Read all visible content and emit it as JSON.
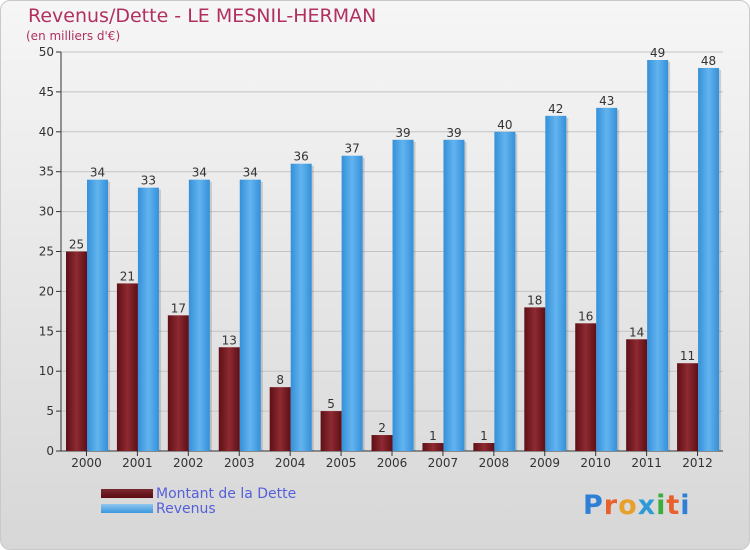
{
  "title": "Revenus/Dette - LE MESNIL-HERMAN",
  "subtitle": "(en milliers d'€)",
  "legend": {
    "dette_label": "Montant de la Dette",
    "revenus_label": "Revenus"
  },
  "brand": {
    "name": "Proxiti",
    "letter_colors": [
      "#2f7fd6",
      "#e8612c",
      "#e8a02c",
      "#2f9bd6",
      "#3cae3c",
      "#e8612c",
      "#2f7fd6"
    ]
  },
  "colors": {
    "title": "#b03060",
    "dette": "#7b1f26",
    "revenus": "#4aa3e6",
    "legend_text": "#5560d8"
  },
  "chart_data": {
    "type": "bar",
    "title": "Revenus/Dette - LE MESNIL-HERMAN",
    "subtitle": "(en milliers d'€)",
    "categories": [
      "2000",
      "2001",
      "2002",
      "2003",
      "2004",
      "2005",
      "2006",
      "2007",
      "2008",
      "2009",
      "2010",
      "2011",
      "2012"
    ],
    "series": [
      {
        "name": "Montant de la Dette",
        "values": [
          25,
          21,
          17,
          13,
          8,
          5,
          2,
          1,
          1,
          18,
          16,
          14,
          11
        ]
      },
      {
        "name": "Revenus",
        "values": [
          34,
          33,
          34,
          34,
          36,
          37,
          39,
          39,
          40,
          42,
          43,
          49,
          48
        ]
      }
    ],
    "ylim": [
      0,
      50
    ],
    "yticks": [
      0,
      5,
      10,
      15,
      20,
      25,
      30,
      35,
      40,
      45,
      50
    ],
    "grid": true,
    "legend_position": "bottom-left"
  }
}
